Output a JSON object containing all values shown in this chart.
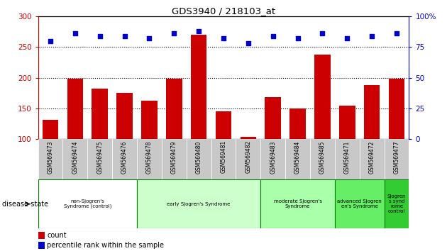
{
  "title": "GDS3940 / 218103_at",
  "samples": [
    "GSM569473",
    "GSM569474",
    "GSM569475",
    "GSM569476",
    "GSM569478",
    "GSM569479",
    "GSM569480",
    "GSM569481",
    "GSM569482",
    "GSM569483",
    "GSM569484",
    "GSM569485",
    "GSM569471",
    "GSM569472",
    "GSM569477"
  ],
  "counts": [
    132,
    198,
    182,
    176,
    163,
    198,
    270,
    145,
    104,
    168,
    150,
    238,
    155,
    188,
    198
  ],
  "percentile": [
    80,
    86,
    84,
    84,
    82,
    86,
    88,
    82,
    78,
    84,
    82,
    86,
    82,
    84,
    86
  ],
  "ylim_left": [
    100,
    300
  ],
  "ylim_right": [
    0,
    100
  ],
  "yticks_left": [
    100,
    150,
    200,
    250,
    300
  ],
  "yticks_right": [
    0,
    25,
    50,
    75,
    100
  ],
  "bar_color": "#cc0000",
  "scatter_color": "#0000cc",
  "groups": [
    {
      "label": "non-Sjogren's\nSyndrome (control)",
      "start": 0,
      "end": 4,
      "color": "#ffffff"
    },
    {
      "label": "early Sjogren's Syndrome",
      "start": 4,
      "end": 9,
      "color": "#ccffcc"
    },
    {
      "label": "moderate Sjogren's\nSyndrome",
      "start": 9,
      "end": 12,
      "color": "#aaffaa"
    },
    {
      "label": "advanced Sjogren\nen's Syndrome",
      "start": 12,
      "end": 14,
      "color": "#66ee66"
    },
    {
      "label": "Sjogren\ns synd\nrome\ncontrol",
      "start": 14,
      "end": 15,
      "color": "#33cc33"
    }
  ],
  "legend_count_label": "count",
  "legend_pct_label": "percentile rank within the sample",
  "disease_state_label": "disease state"
}
